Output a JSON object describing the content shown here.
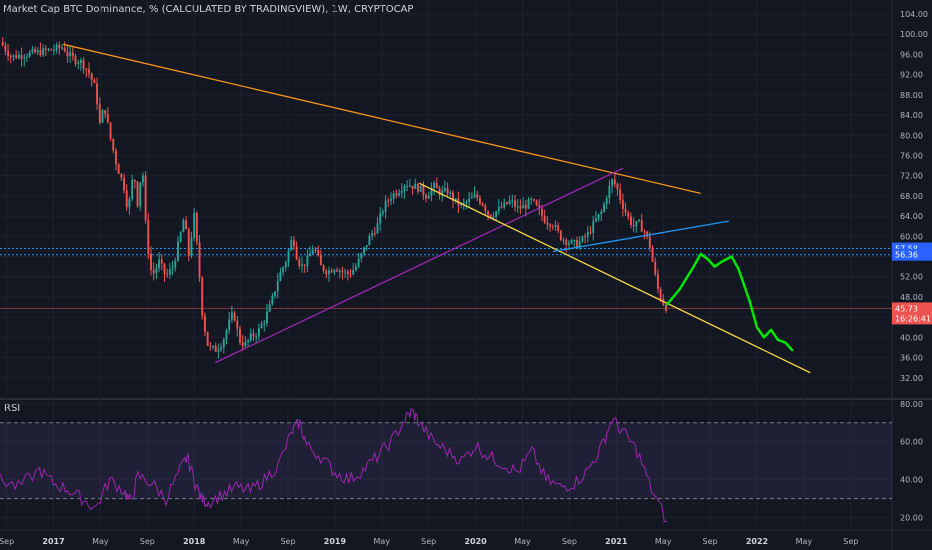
{
  "header": {
    "title": "Market Cap BTC Dominance, % (CALCULATED BY TRADINGVIEW), 1W, CRYPTOCAP"
  },
  "colors": {
    "background": "#131722",
    "grid": "#1e2230",
    "candle_up": "#26a69a",
    "candle_down": "#ef5350",
    "trend_orange": "#f7931a",
    "trend_yellow": "#f5d442",
    "trend_purple": "#9c27b0",
    "trend_blue": "#2196f3",
    "projection_green": "#00e600",
    "rsi_line": "#9c27b0",
    "rsi_band": "#7e57c2"
  },
  "chart_data": [
    {
      "type": "candlestick",
      "title": "Market Cap BTC Dominance, % (CALCULATED BY TRADINGVIEW), 1W, CRYPTOCAP",
      "ylim": [
        28,
        104
      ],
      "y_ticks": [
        "104.00",
        "100.00",
        "96.00",
        "92.00",
        "88.00",
        "84.00",
        "80.00",
        "76.00",
        "72.00",
        "68.00",
        "64.00",
        "60.00",
        "56.00",
        "52.00",
        "48.00",
        "44.00",
        "40.00",
        "36.00",
        "32.00"
      ],
      "x_ticks": [
        "Sep",
        "2017",
        "May",
        "Sep",
        "2018",
        "May",
        "Sep",
        "2019",
        "May",
        "Sep",
        "2020",
        "May",
        "Sep",
        "2021",
        "May",
        "Sep",
        "2022",
        "May",
        "Sep"
      ],
      "price_labels": [
        {
          "text": "57.58",
          "value": 57.58,
          "color": "#2962ff"
        },
        {
          "text": "56.36",
          "value": 56.36,
          "color": "#2962ff"
        },
        {
          "text": "45.73",
          "value": 45.73,
          "color": "#ef5350"
        },
        {
          "text": "16:26:41",
          "color": "#ef5350"
        }
      ],
      "horizontal_levels": [
        57.58,
        56.36,
        45.73
      ],
      "close_path": [
        [
          2016.62,
          98.5
        ],
        [
          2016.7,
          95.5
        ],
        [
          2016.8,
          96.0
        ],
        [
          2016.9,
          96.5
        ],
        [
          2017.0,
          97.0
        ],
        [
          2017.07,
          97.5
        ],
        [
          2017.1,
          96.0
        ],
        [
          2017.15,
          95.0
        ],
        [
          2017.2,
          94.5
        ],
        [
          2017.25,
          92.5
        ],
        [
          2017.3,
          89.0
        ],
        [
          2017.33,
          82.0
        ],
        [
          2017.36,
          86.0
        ],
        [
          2017.4,
          80.0
        ],
        [
          2017.45,
          74.0
        ],
        [
          2017.5,
          70.0
        ],
        [
          2017.53,
          65.0
        ],
        [
          2017.57,
          73.0
        ],
        [
          2017.6,
          66.0
        ],
        [
          2017.63,
          75.0
        ],
        [
          2017.66,
          60.0
        ],
        [
          2017.7,
          52.0
        ],
        [
          2017.75,
          55.0
        ],
        [
          2017.8,
          52.0
        ],
        [
          2017.85,
          54.0
        ],
        [
          2017.9,
          60.0
        ],
        [
          2017.93,
          64.0
        ],
        [
          2017.96,
          56.0
        ],
        [
          2018.0,
          64.0
        ],
        [
          2018.03,
          55.0
        ],
        [
          2018.06,
          44.0
        ],
        [
          2018.1,
          38.0
        ],
        [
          2018.15,
          37.5
        ],
        [
          2018.2,
          39.0
        ],
        [
          2018.25,
          43.0
        ],
        [
          2018.28,
          45.0
        ],
        [
          2018.32,
          39.5
        ],
        [
          2018.36,
          38.5
        ],
        [
          2018.4,
          40.0
        ],
        [
          2018.45,
          41.0
        ],
        [
          2018.5,
          43.5
        ],
        [
          2018.55,
          47.0
        ],
        [
          2018.6,
          52.0
        ],
        [
          2018.65,
          55.0
        ],
        [
          2018.7,
          60.0
        ],
        [
          2018.73,
          56.0
        ],
        [
          2018.76,
          54.0
        ],
        [
          2018.8,
          55.0
        ],
        [
          2018.85,
          58.0
        ],
        [
          2018.9,
          54.0
        ],
        [
          2018.95,
          53.0
        ],
        [
          2019.0,
          54.0
        ],
        [
          2019.05,
          53.0
        ],
        [
          2019.1,
          52.5
        ],
        [
          2019.15,
          54.0
        ],
        [
          2019.2,
          57.0
        ],
        [
          2019.25,
          60.0
        ],
        [
          2019.3,
          62.0
        ],
        [
          2019.35,
          66.0
        ],
        [
          2019.4,
          68.0
        ],
        [
          2019.45,
          69.0
        ],
        [
          2019.5,
          70.5
        ],
        [
          2019.55,
          70.0
        ],
        [
          2019.6,
          69.5
        ],
        [
          2019.65,
          68.0
        ],
        [
          2019.7,
          70.0
        ],
        [
          2019.75,
          68.5
        ],
        [
          2019.8,
          69.0
        ],
        [
          2019.85,
          67.0
        ],
        [
          2019.9,
          66.0
        ],
        [
          2019.95,
          67.0
        ],
        [
          2020.0,
          68.0
        ],
        [
          2020.05,
          66.5
        ],
        [
          2020.1,
          64.0
        ],
        [
          2020.15,
          65.0
        ],
        [
          2020.2,
          66.0
        ],
        [
          2020.25,
          67.0
        ],
        [
          2020.3,
          65.5
        ],
        [
          2020.35,
          66.0
        ],
        [
          2020.4,
          67.0
        ],
        [
          2020.45,
          65.0
        ],
        [
          2020.5,
          63.0
        ],
        [
          2020.55,
          62.5
        ],
        [
          2020.6,
          60.0
        ],
        [
          2020.65,
          59.0
        ],
        [
          2020.7,
          58.5
        ],
        [
          2020.75,
          59.0
        ],
        [
          2020.8,
          60.5
        ],
        [
          2020.85,
          63.0
        ],
        [
          2020.9,
          65.0
        ],
        [
          2020.93,
          68.0
        ],
        [
          2020.97,
          71.0
        ],
        [
          2021.0,
          70.0
        ],
        [
          2021.04,
          66.5
        ],
        [
          2021.08,
          64.0
        ],
        [
          2021.12,
          62.0
        ],
        [
          2021.16,
          62.5
        ],
        [
          2021.2,
          61.0
        ],
        [
          2021.24,
          58.0
        ],
        [
          2021.27,
          53.0
        ],
        [
          2021.3,
          49.0
        ],
        [
          2021.33,
          47.0
        ],
        [
          2021.36,
          45.73
        ]
      ],
      "trendlines": [
        {
          "name": "resistance",
          "color": "orange",
          "from": [
            2017.07,
            98.0
          ],
          "to": [
            2021.6,
            68.5
          ]
        },
        {
          "name": "support",
          "color": "purple",
          "from": [
            2018.15,
            35.0
          ],
          "to": [
            2021.05,
            73.5
          ]
        },
        {
          "name": "channel",
          "color": "yellow",
          "from": [
            2019.6,
            70.5
          ],
          "to": [
            2022.38,
            33.0
          ]
        },
        {
          "name": "neckline",
          "color": "blue",
          "from": [
            2020.55,
            57.0
          ],
          "to": [
            2021.8,
            63.0
          ]
        }
      ],
      "projection": [
        [
          2021.36,
          46.5
        ],
        [
          2021.45,
          49.5
        ],
        [
          2021.55,
          54.0
        ],
        [
          2021.6,
          56.5
        ],
        [
          2021.65,
          55.5
        ],
        [
          2021.7,
          54.0
        ],
        [
          2021.75,
          55.0
        ],
        [
          2021.82,
          56.0
        ],
        [
          2021.87,
          53.5
        ],
        [
          2021.95,
          47.0
        ],
        [
          2022.0,
          42.0
        ],
        [
          2022.05,
          40.0
        ],
        [
          2022.1,
          41.5
        ],
        [
          2022.15,
          39.5
        ],
        [
          2022.2,
          39.0
        ],
        [
          2022.25,
          37.5
        ]
      ]
    },
    {
      "type": "line",
      "title": "RSI",
      "ylim": [
        15,
        82
      ],
      "y_ticks": [
        "80.00",
        "60.00",
        "40.00",
        "20.00"
      ],
      "bands": [
        70,
        30
      ],
      "x": [
        2016.62,
        2016.75,
        2016.9,
        2017.0,
        2017.1,
        2017.2,
        2017.3,
        2017.4,
        2017.5,
        2017.55,
        2017.6,
        2017.7,
        2017.8,
        2017.9,
        2017.95,
        2018.0,
        2018.05,
        2018.1,
        2018.2,
        2018.3,
        2018.4,
        2018.5,
        2018.6,
        2018.7,
        2018.75,
        2018.8,
        2018.9,
        2019.0,
        2019.1,
        2019.2,
        2019.3,
        2019.4,
        2019.5,
        2019.55,
        2019.6,
        2019.7,
        2019.8,
        2019.9,
        2020.0,
        2020.1,
        2020.2,
        2020.3,
        2020.4,
        2020.5,
        2020.6,
        2020.7,
        2020.8,
        2020.9,
        2020.97,
        2021.05,
        2021.15,
        2021.25,
        2021.36
      ],
      "values": [
        40,
        36,
        45,
        38,
        35,
        30,
        25,
        40,
        34,
        28,
        42,
        38,
        30,
        45,
        52,
        40,
        30,
        28,
        32,
        36,
        34,
        40,
        48,
        66,
        70,
        58,
        52,
        44,
        40,
        45,
        52,
        60,
        72,
        76,
        70,
        60,
        55,
        50,
        58,
        52,
        48,
        44,
        55,
        40,
        36,
        38,
        45,
        58,
        72,
        65,
        55,
        35,
        18
      ]
    }
  ]
}
